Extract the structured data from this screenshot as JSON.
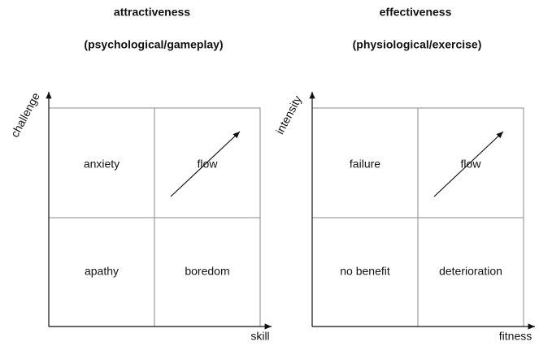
{
  "panels": [
    {
      "title": "attractiveness",
      "subtitle": "(psychological/gameplay)",
      "y_axis_label": "challenge",
      "x_axis_label": "skill",
      "quadrants": {
        "top_left": "anxiety",
        "top_right": "flow",
        "bottom_left": "apathy",
        "bottom_right": "boredom"
      }
    },
    {
      "title": "effectiveness",
      "subtitle": "(physiological/exercise)",
      "y_axis_label": "intensity",
      "x_axis_label": "fitness",
      "quadrants": {
        "top_left": "failure",
        "top_right": "flow",
        "bottom_left": "no benefit",
        "bottom_right": "deterioration"
      }
    }
  ]
}
